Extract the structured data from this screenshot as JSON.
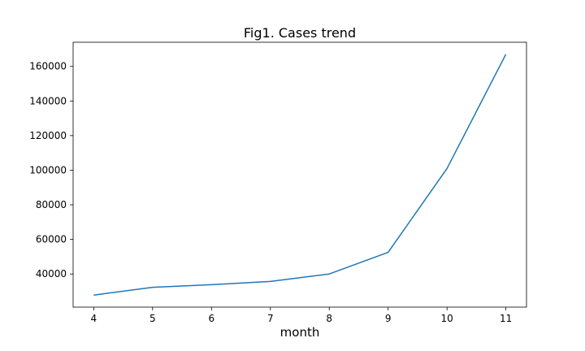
{
  "chart_data": {
    "type": "line",
    "title": "Fig1. Cases trend",
    "xlabel": "month",
    "ylabel": "",
    "x": [
      4,
      5,
      6,
      7,
      8,
      9,
      10,
      11
    ],
    "series": [
      {
        "values": [
          27800,
          32300,
          33800,
          35700,
          40000,
          52500,
          101000,
          167000
        ],
        "color": "#1f77b4"
      }
    ],
    "xticks": [
      4,
      5,
      6,
      7,
      8,
      9,
      10,
      11
    ],
    "xtick_labels": [
      "4",
      "5",
      "6",
      "7",
      "8",
      "9",
      "10",
      "11"
    ],
    "yticks": [
      40000,
      60000,
      80000,
      100000,
      120000,
      140000,
      160000
    ],
    "ytick_labels": [
      "40000",
      "60000",
      "80000",
      "100000",
      "120000",
      "140000",
      "160000"
    ],
    "xlim": [
      3.65,
      11.35
    ],
    "ylim": [
      20840,
      173960
    ],
    "grid": false,
    "legend": "none"
  }
}
